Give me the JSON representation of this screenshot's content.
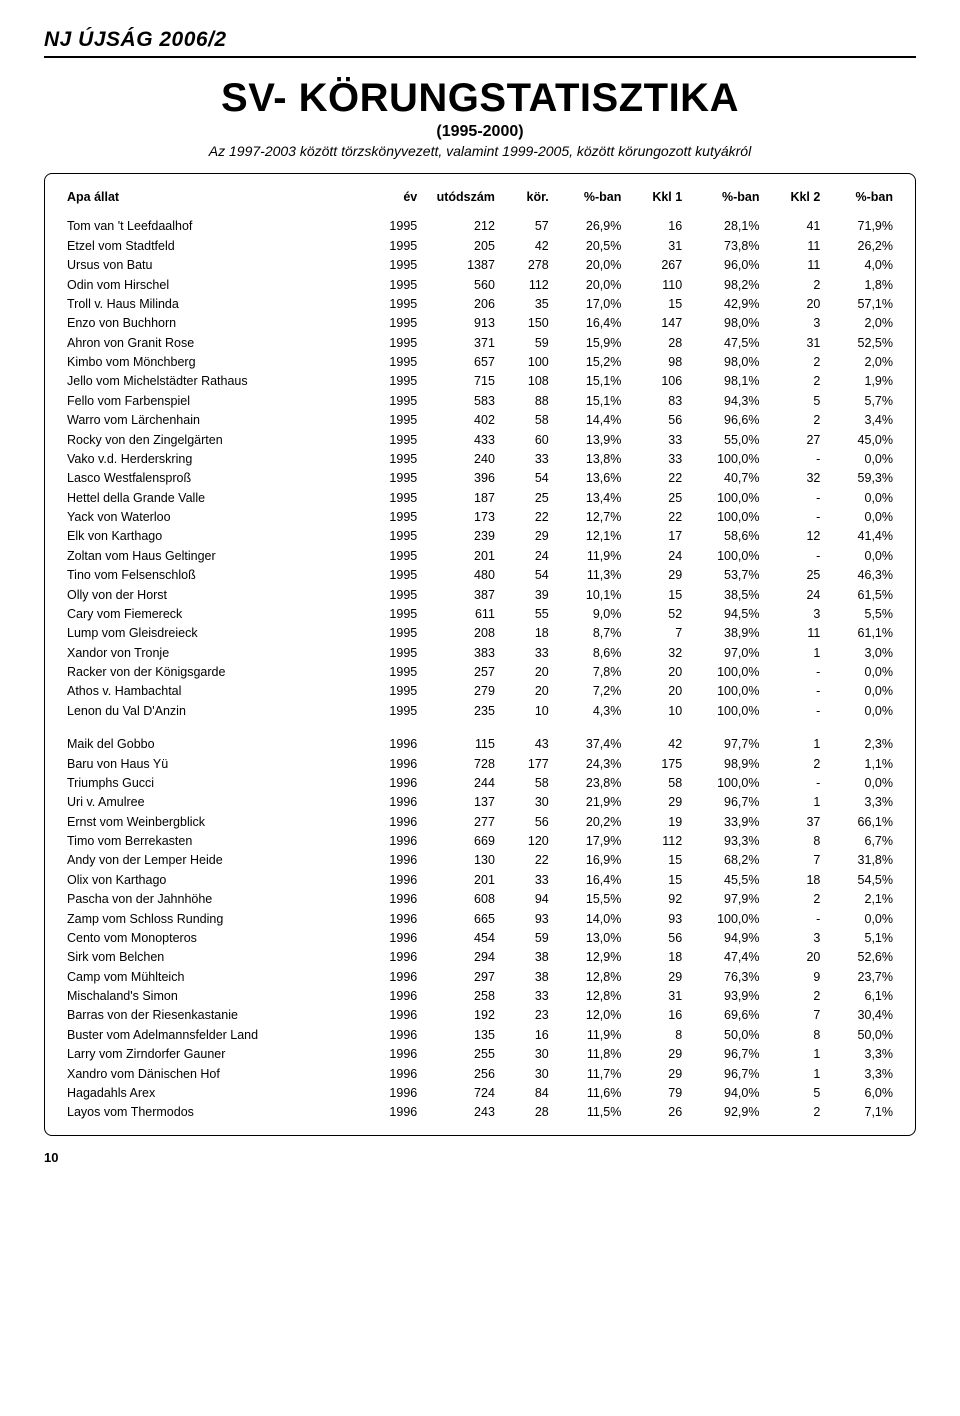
{
  "masthead": "NJ ÚJSÁG 2006/2",
  "title": "SV- KÖRUNGSTATISZTIKA",
  "subtitle1": "(1995-2000)",
  "subtitle2": "Az 1997-2003 között törzskönyvezett, valamint 1999-2005, között körungozott kutyákról",
  "page_number": "10",
  "columns": [
    "Apa állat",
    "év",
    "utódszám",
    "kör.",
    "%-ban",
    "Kkl 1",
    "%-ban",
    "Kkl 2",
    "%-ban"
  ],
  "groups": [
    {
      "rows": [
        [
          "Tom van 't Leefdaalhof",
          "1995",
          "212",
          "57",
          "26,9%",
          "16",
          "28,1%",
          "41",
          "71,9%"
        ],
        [
          "Etzel vom Stadtfeld",
          "1995",
          "205",
          "42",
          "20,5%",
          "31",
          "73,8%",
          "11",
          "26,2%"
        ],
        [
          "Ursus von Batu",
          "1995",
          "1387",
          "278",
          "20,0%",
          "267",
          "96,0%",
          "11",
          "4,0%"
        ],
        [
          "Odin vom Hirschel",
          "1995",
          "560",
          "112",
          "20,0%",
          "110",
          "98,2%",
          "2",
          "1,8%"
        ],
        [
          "Troll v. Haus Milinda",
          "1995",
          "206",
          "35",
          "17,0%",
          "15",
          "42,9%",
          "20",
          "57,1%"
        ],
        [
          "Enzo von Buchhorn",
          "1995",
          "913",
          "150",
          "16,4%",
          "147",
          "98,0%",
          "3",
          "2,0%"
        ],
        [
          "Ahron von Granit Rose",
          "1995",
          "371",
          "59",
          "15,9%",
          "28",
          "47,5%",
          "31",
          "52,5%"
        ],
        [
          "Kimbo vom Mönchberg",
          "1995",
          "657",
          "100",
          "15,2%",
          "98",
          "98,0%",
          "2",
          "2,0%"
        ],
        [
          "Jello vom Michelstädter Rathaus",
          "1995",
          "715",
          "108",
          "15,1%",
          "106",
          "98,1%",
          "2",
          "1,9%"
        ],
        [
          "Fello vom Farbenspiel",
          "1995",
          "583",
          "88",
          "15,1%",
          "83",
          "94,3%",
          "5",
          "5,7%"
        ],
        [
          "Warro vom Lärchenhain",
          "1995",
          "402",
          "58",
          "14,4%",
          "56",
          "96,6%",
          "2",
          "3,4%"
        ],
        [
          "Rocky von den Zingelgärten",
          "1995",
          "433",
          "60",
          "13,9%",
          "33",
          "55,0%",
          "27",
          "45,0%"
        ],
        [
          "Vako v.d. Herderskring",
          "1995",
          "240",
          "33",
          "13,8%",
          "33",
          "100,0%",
          "-",
          "0,0%"
        ],
        [
          "Lasco Westfalensproß",
          "1995",
          "396",
          "54",
          "13,6%",
          "22",
          "40,7%",
          "32",
          "59,3%"
        ],
        [
          "Hettel della Grande Valle",
          "1995",
          "187",
          "25",
          "13,4%",
          "25",
          "100,0%",
          "-",
          "0,0%"
        ],
        [
          "Yack von Waterloo",
          "1995",
          "173",
          "22",
          "12,7%",
          "22",
          "100,0%",
          "-",
          "0,0%"
        ],
        [
          "Elk von Karthago",
          "1995",
          "239",
          "29",
          "12,1%",
          "17",
          "58,6%",
          "12",
          "41,4%"
        ],
        [
          "Zoltan vom Haus Geltinger",
          "1995",
          "201",
          "24",
          "11,9%",
          "24",
          "100,0%",
          "-",
          "0,0%"
        ],
        [
          "Tino vom Felsenschloß",
          "1995",
          "480",
          "54",
          "11,3%",
          "29",
          "53,7%",
          "25",
          "46,3%"
        ],
        [
          "Olly von der Horst",
          "1995",
          "387",
          "39",
          "10,1%",
          "15",
          "38,5%",
          "24",
          "61,5%"
        ],
        [
          "Cary vom Fiemereck",
          "1995",
          "611",
          "55",
          "9,0%",
          "52",
          "94,5%",
          "3",
          "5,5%"
        ],
        [
          "Lump vom Gleisdreieck",
          "1995",
          "208",
          "18",
          "8,7%",
          "7",
          "38,9%",
          "11",
          "61,1%"
        ],
        [
          "Xandor von Tronje",
          "1995",
          "383",
          "33",
          "8,6%",
          "32",
          "97,0%",
          "1",
          "3,0%"
        ],
        [
          "Racker von der Königsgarde",
          "1995",
          "257",
          "20",
          "7,8%",
          "20",
          "100,0%",
          "-",
          "0,0%"
        ],
        [
          "Athos v. Hambachtal",
          "1995",
          "279",
          "20",
          "7,2%",
          "20",
          "100,0%",
          "-",
          "0,0%"
        ],
        [
          "Lenon du Val D'Anzin",
          "1995",
          "235",
          "10",
          "4,3%",
          "10",
          "100,0%",
          "-",
          "0,0%"
        ]
      ]
    },
    {
      "rows": [
        [
          "Maik del Gobbo",
          "1996",
          "115",
          "43",
          "37,4%",
          "42",
          "97,7%",
          "1",
          "2,3%"
        ],
        [
          "Baru von Haus Yü",
          "1996",
          "728",
          "177",
          "24,3%",
          "175",
          "98,9%",
          "2",
          "1,1%"
        ],
        [
          "Triumphs Gucci",
          "1996",
          "244",
          "58",
          "23,8%",
          "58",
          "100,0%",
          "-",
          "0,0%"
        ],
        [
          "Uri v. Amulree",
          "1996",
          "137",
          "30",
          "21,9%",
          "29",
          "96,7%",
          "1",
          "3,3%"
        ],
        [
          "Ernst vom Weinbergblick",
          "1996",
          "277",
          "56",
          "20,2%",
          "19",
          "33,9%",
          "37",
          "66,1%"
        ],
        [
          "Timo vom Berrekasten",
          "1996",
          "669",
          "120",
          "17,9%",
          "112",
          "93,3%",
          "8",
          "6,7%"
        ],
        [
          "Andy von der Lemper Heide",
          "1996",
          "130",
          "22",
          "16,9%",
          "15",
          "68,2%",
          "7",
          "31,8%"
        ],
        [
          "Olix von Karthago",
          "1996",
          "201",
          "33",
          "16,4%",
          "15",
          "45,5%",
          "18",
          "54,5%"
        ],
        [
          "Pascha von der Jahnhöhe",
          "1996",
          "608",
          "94",
          "15,5%",
          "92",
          "97,9%",
          "2",
          "2,1%"
        ],
        [
          "Zamp vom Schloss Runding",
          "1996",
          "665",
          "93",
          "14,0%",
          "93",
          "100,0%",
          "-",
          "0,0%"
        ],
        [
          "Cento vom Monopteros",
          "1996",
          "454",
          "59",
          "13,0%",
          "56",
          "94,9%",
          "3",
          "5,1%"
        ],
        [
          "Sirk vom Belchen",
          "1996",
          "294",
          "38",
          "12,9%",
          "18",
          "47,4%",
          "20",
          "52,6%"
        ],
        [
          "Camp vom Mühlteich",
          "1996",
          "297",
          "38",
          "12,8%",
          "29",
          "76,3%",
          "9",
          "23,7%"
        ],
        [
          "Mischaland's Simon",
          "1996",
          "258",
          "33",
          "12,8%",
          "31",
          "93,9%",
          "2",
          "6,1%"
        ],
        [
          "Barras von der Riesenkastanie",
          "1996",
          "192",
          "23",
          "12,0%",
          "16",
          "69,6%",
          "7",
          "30,4%"
        ],
        [
          "Buster vom Adelmannsfelder Land",
          "1996",
          "135",
          "16",
          "11,9%",
          "8",
          "50,0%",
          "8",
          "50,0%"
        ],
        [
          "Larry vom Zirndorfer Gauner",
          "1996",
          "255",
          "30",
          "11,8%",
          "29",
          "96,7%",
          "1",
          "3,3%"
        ],
        [
          "Xandro vom Dänischen Hof",
          "1996",
          "256",
          "30",
          "11,7%",
          "29",
          "96,7%",
          "1",
          "3,3%"
        ],
        [
          "Hagadahls Arex",
          "1996",
          "724",
          "84",
          "11,6%",
          "79",
          "94,0%",
          "5",
          "6,0%"
        ],
        [
          "Layos vom Thermodos",
          "1996",
          "243",
          "28",
          "11,5%",
          "26",
          "92,9%",
          "2",
          "7,1%"
        ]
      ]
    }
  ]
}
